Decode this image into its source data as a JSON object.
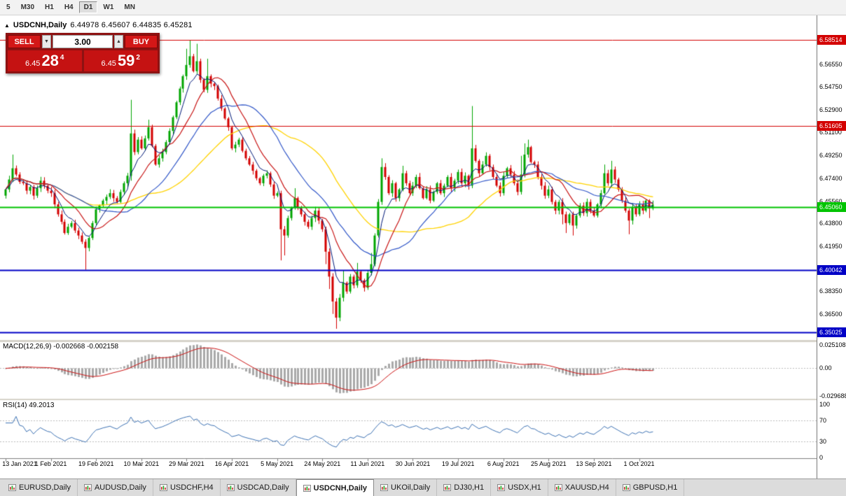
{
  "toolbar": {
    "timeframes": [
      {
        "label": "5",
        "active": false
      },
      {
        "label": "M30",
        "active": false
      },
      {
        "label": "H1",
        "active": false
      },
      {
        "label": "H4",
        "active": false
      },
      {
        "label": "D1",
        "active": true
      },
      {
        "label": "W1",
        "active": false
      },
      {
        "label": "MN",
        "active": false
      }
    ]
  },
  "chart_title": {
    "icon": "▲",
    "symbol": "USDCNH,Daily",
    "ohlc": "6.44978 6.45607 6.44835 6.45281"
  },
  "trade_panel": {
    "sell_label": "SELL",
    "buy_label": "BUY",
    "lot_value": "3.00",
    "spinner_down": "▼",
    "spinner_up": "▲",
    "bid": {
      "prefix": "6.45",
      "big": "28",
      "sup": "4"
    },
    "ask": {
      "prefix": "6.45",
      "big": "59",
      "sup": "2"
    }
  },
  "indicator_labels": {
    "macd": "MACD(12,26,9) -0.002668 -0.002158",
    "rsi": "RSI(14) 49.2013"
  },
  "chart_data": {
    "type": "candlestick",
    "symbol": "USDCNH",
    "timeframe": "Daily",
    "ohlc_display": {
      "open": 6.44978,
      "high": 6.45607,
      "low": 6.44835,
      "close": 6.45281
    },
    "colors": {
      "up": "#00a500",
      "down": "#d40000"
    },
    "x_axis": {
      "labels": [
        {
          "text": "13 Jan 2021",
          "index": 0
        },
        {
          "text": "1 Feb 2021",
          "index": 13
        },
        {
          "text": "19 Feb 2021",
          "index": 26
        },
        {
          "text": "10 Mar 2021",
          "index": 39
        },
        {
          "text": "29 Mar 2021",
          "index": 52
        },
        {
          "text": "16 Apr 2021",
          "index": 65
        },
        {
          "text": "5 May 2021",
          "index": 78
        },
        {
          "text": "24 May 2021",
          "index": 91
        },
        {
          "text": "11 Jun 2021",
          "index": 104
        },
        {
          "text": "30 Jun 2021",
          "index": 117
        },
        {
          "text": "19 Jul 2021",
          "index": 130
        },
        {
          "text": "6 Aug 2021",
          "index": 143
        },
        {
          "text": "25 Aug 2021",
          "index": 156
        },
        {
          "text": "13 Sep 2021",
          "index": 169
        },
        {
          "text": "1 Oct 2021",
          "index": 182
        }
      ]
    },
    "y_axis": {
      "ticks": [
        "6.56550",
        "6.54750",
        "6.52900",
        "6.51100",
        "6.49250",
        "6.47400",
        "6.45560",
        "6.43800",
        "6.41950",
        "6.38350",
        "6.36500"
      ]
    },
    "levels": [
      {
        "price": 6.58514,
        "label": "6.58514",
        "color": "#d30000",
        "width": 1
      },
      {
        "price": 6.51605,
        "label": "6.51605",
        "color": "#d30000",
        "width": 1
      },
      {
        "price": 6.4506,
        "label": "6.45060",
        "color": "#00c400",
        "width": 2
      },
      {
        "price": 6.40042,
        "label": "6.40042",
        "color": "#0000c6",
        "width": 2
      },
      {
        "price": 6.35025,
        "label": "6.35025",
        "color": "#0000c6",
        "width": 2
      }
    ],
    "moving_averages": [
      {
        "type": "SMA",
        "period": 40,
        "color": "#ffd300",
        "width": 1.3
      },
      {
        "type": "SMA",
        "period": 24,
        "color": "#3056c8",
        "width": 1.2
      },
      {
        "type": "SMA",
        "period": 12,
        "color": "#c81414",
        "width": 1.2
      },
      {
        "type": "EMA",
        "period": 6,
        "color": "#001878",
        "width": 1
      }
    ],
    "candles": {
      "first_open": 6.46,
      "closes": [
        6.465,
        6.473,
        6.482,
        6.477,
        6.471,
        6.47,
        6.464,
        6.467,
        6.46,
        6.466,
        6.472,
        6.468,
        6.464,
        6.462,
        6.453,
        6.445,
        6.439,
        6.43,
        6.435,
        6.438,
        6.432,
        6.428,
        6.423,
        6.418,
        6.426,
        6.438,
        6.449,
        6.452,
        6.456,
        6.459,
        6.462,
        6.458,
        6.455,
        6.463,
        6.47,
        6.476,
        6.51,
        6.495,
        6.505,
        6.498,
        6.506,
        6.515,
        6.5,
        6.485,
        6.49,
        6.495,
        6.503,
        6.512,
        6.523,
        6.535,
        6.546,
        6.556,
        6.565,
        6.572,
        6.56,
        6.568,
        6.553,
        6.545,
        6.556,
        6.55,
        6.548,
        6.538,
        6.53,
        6.522,
        6.515,
        6.498,
        6.501,
        6.505,
        6.496,
        6.49,
        6.485,
        6.48,
        6.474,
        6.47,
        6.476,
        6.478,
        6.469,
        6.46,
        6.462,
        6.433,
        6.428,
        6.442,
        6.45,
        6.458,
        6.45,
        6.445,
        6.439,
        6.435,
        6.442,
        6.448,
        6.44,
        6.433,
        6.415,
        6.395,
        6.375,
        6.362,
        6.378,
        6.39,
        6.383,
        6.395,
        6.388,
        6.399,
        6.392,
        6.386,
        6.398,
        6.405,
        6.428,
        6.455,
        6.483,
        6.475,
        6.462,
        6.47,
        6.458,
        6.465,
        6.478,
        6.47,
        6.462,
        6.468,
        6.475,
        6.466,
        6.458,
        6.465,
        6.456,
        6.463,
        6.47,
        6.462,
        6.468,
        6.475,
        6.466,
        6.472,
        6.479,
        6.47,
        6.476,
        6.468,
        6.498,
        6.488,
        6.478,
        6.485,
        6.492,
        6.483,
        6.475,
        6.468,
        6.462,
        6.476,
        6.482,
        6.477,
        6.47,
        6.463,
        6.477,
        6.493,
        6.499,
        6.487,
        6.485,
        6.475,
        6.468,
        6.46,
        6.465,
        6.455,
        6.448,
        6.455,
        6.445,
        6.438,
        6.445,
        6.436,
        6.444,
        6.452,
        6.446,
        6.455,
        6.448,
        6.444,
        6.453,
        6.462,
        6.478,
        6.47,
        6.481,
        6.473,
        6.465,
        6.456,
        6.448,
        6.44,
        6.451,
        6.445,
        6.453,
        6.448,
        6.456,
        6.4498,
        6.4528
      ],
      "overrides": {
        "2": {
          "h": 6.493
        },
        "23": {
          "l": 6.4005
        },
        "36": {
          "h": 6.537,
          "l": 6.472
        },
        "41": {
          "h": 6.521
        },
        "52": {
          "h": 6.578
        },
        "53": {
          "h": 6.5851
        },
        "55": {
          "h": 6.582
        },
        "58": {
          "h": 6.57
        },
        "79": {
          "h": 6.464,
          "l": 6.408
        },
        "80": {
          "l": 6.412
        },
        "83": {
          "h": 6.466
        },
        "92": {
          "l": 6.405
        },
        "93": {
          "l": 6.385
        },
        "94": {
          "l": 6.365
        },
        "95": {
          "l": 6.3531
        },
        "97": {
          "h": 6.4
        },
        "101": {
          "h": 6.406
        },
        "105": {
          "h": 6.414
        },
        "108": {
          "h": 6.49
        },
        "114": {
          "h": 6.484
        },
        "134": {
          "h": 6.532,
          "l": 6.466
        },
        "148": {
          "h": 6.492
        },
        "149": {
          "h": 6.502
        },
        "150": {
          "h": 6.505
        },
        "160": {
          "l": 6.437
        },
        "161": {
          "l": 6.43
        },
        "163": {
          "l": 6.428
        },
        "172": {
          "h": 6.485
        },
        "174": {
          "h": 6.488
        },
        "179": {
          "l": 6.429
        },
        "185": {
          "l": 6.442
        },
        "186": {
          "o": 6.44978,
          "h": 6.45607,
          "l": 6.44835,
          "c": 6.45281
        }
      }
    },
    "macd": {
      "fast": 12,
      "slow": 26,
      "signal": 9,
      "value": -0.002668,
      "signal_value": -0.002158,
      "scale_top": 0.025108,
      "scale_bottom": -0.029688,
      "axis": [
        "0.025108",
        "0.00",
        "-0.029688"
      ],
      "hist_color": "#a9a9a9",
      "signal_color": "#cc1111"
    },
    "rsi": {
      "period": 14,
      "value": 49.2013,
      "color": "#3d72b4",
      "levels": [
        30,
        70
      ],
      "axis": [
        "100",
        "70",
        "30",
        "0"
      ]
    }
  },
  "tabs": [
    {
      "label": "EURUSD,Daily",
      "active": false
    },
    {
      "label": "AUDUSD,Daily",
      "active": false
    },
    {
      "label": "USDCHF,H4",
      "active": false
    },
    {
      "label": "USDCAD,Daily",
      "active": false
    },
    {
      "label": "USDCNH,Daily",
      "active": true
    },
    {
      "label": "UKOil,Daily",
      "active": false
    },
    {
      "label": "DJ30,H1",
      "active": false
    },
    {
      "label": "USDX,H1",
      "active": false
    },
    {
      "label": "XAUUSD,H4",
      "active": false
    },
    {
      "label": "GBPUSD,H1",
      "active": false
    }
  ]
}
